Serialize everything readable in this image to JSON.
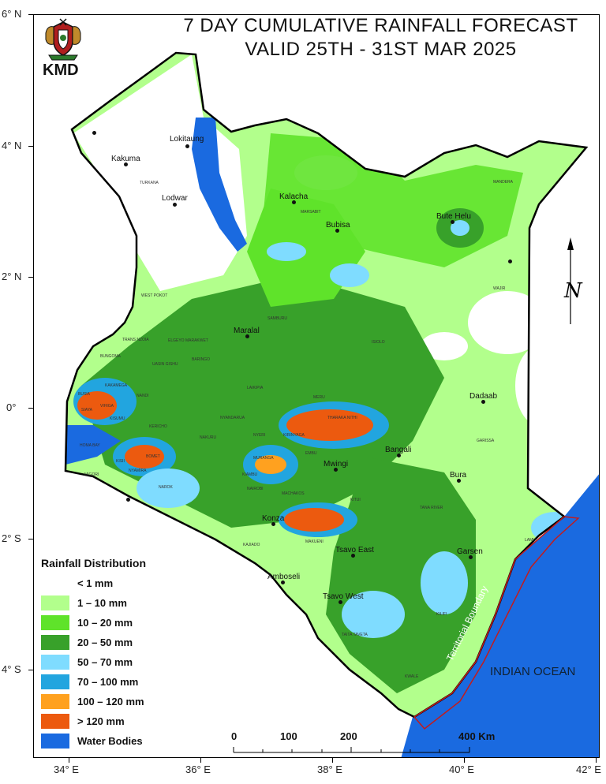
{
  "title": {
    "line1": "7 DAY CUMULATIVE RAINFALL FORECAST",
    "line2": "VALID 25TH - 31ST MAR  2025"
  },
  "logo": {
    "label": "KMD"
  },
  "axes": {
    "lat_labels": [
      "6° N",
      "4° N",
      "2° N",
      "0°",
      "2° S",
      "4° S"
    ],
    "lon_labels": [
      "34° E",
      "36° E",
      "38° E",
      "40° E",
      "42° E"
    ]
  },
  "legend": {
    "title": "Rainfall Distribution",
    "items": [
      {
        "label": "< 1 mm",
        "color": "#ffffff"
      },
      {
        "label": "1 – 10 mm",
        "color": "#b2ff8c"
      },
      {
        "label": "10 – 20 mm",
        "color": "#5fe32a"
      },
      {
        "label": "20 – 50 mm",
        "color": "#38a12a"
      },
      {
        "label": "50 – 70 mm",
        "color": "#7fdcff"
      },
      {
        "label": "70 – 100 mm",
        "color": "#22a5df"
      },
      {
        "label": "100 – 120 mm",
        "color": "#ffa11f"
      },
      {
        "label": "> 120 mm",
        "color": "#ec5a0f"
      },
      {
        "label": "Water Bodies",
        "color": "#1a6ae0"
      }
    ]
  },
  "scale_bar": {
    "labels": [
      "0",
      "100",
      "200",
      "400 Km"
    ]
  },
  "compass": {
    "label": "N"
  },
  "ocean_label": "INDIAN OCEAN",
  "boundary_label": "Territorial Boundary",
  "towns": [
    "Lokitaung",
    "Kakuma",
    "Lodwar",
    "Kalacha",
    "Bubisa",
    "Bute Helu",
    "Maralal",
    "Dadaab",
    "Bangali",
    "Mwingi",
    "Bura",
    "Konza",
    "Tsavo East",
    "Garsen",
    "Amboseli",
    "Tsavo West"
  ],
  "counties": [
    "TURKANA",
    "MARSABIT",
    "MANDERA",
    "WAJIR",
    "WEST POKOT",
    "SAMBURU",
    "ISIOLO",
    "TRANS NZOIA",
    "BARINGO",
    "LAIKIPIA",
    "MERU",
    "THARAKA NITHI",
    "EMBU",
    "KITUI",
    "GARISSA",
    "TANA RIVER",
    "NYERI",
    "MURANGA",
    "KIAMBU",
    "NAIROBI",
    "MACHAKOS",
    "MAKUENI",
    "KAJIADO",
    "NAKURU",
    "NAROK",
    "KISII",
    "MIGORI",
    "HOMA BAY",
    "KISUMU",
    "SIAYA",
    "BUSIA",
    "KAKAMEGA",
    "NANDI",
    "BOMET",
    "KERICHO",
    "LAMU",
    "KWALE",
    "KILIFI",
    "TAITA TAVETA",
    "VIHIGA",
    "BUNGOMA",
    "UASIN GISHU",
    "ELGEYO MARAKWET",
    "NYANDARUA",
    "KIRINYAGA",
    "NYAMIRA"
  ]
}
